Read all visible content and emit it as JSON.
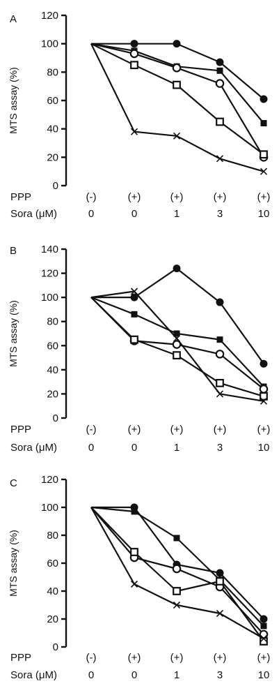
{
  "chart_data": [
    {
      "panel": "A",
      "type": "line",
      "ylabel": "MTS assay (%)",
      "ylim": [
        0,
        120
      ],
      "yticks": [
        0,
        20,
        40,
        60,
        80,
        100,
        120
      ],
      "categories": [
        "0",
        "1",
        "2",
        "3",
        "4"
      ],
      "rows": [
        {
          "name": "PPP",
          "values": [
            "(-)",
            "(+)",
            "(+)",
            "(+)",
            "(+)"
          ]
        },
        {
          "name": "Sora (μM)",
          "values": [
            "0",
            "0",
            "1",
            "3",
            "10"
          ]
        }
      ],
      "series": [
        {
          "marker": "filled-circle",
          "values": [
            100,
            100,
            100,
            87,
            61
          ]
        },
        {
          "marker": "filled-square",
          "values": [
            100,
            95,
            84,
            81,
            44
          ]
        },
        {
          "marker": "open-circle",
          "values": [
            100,
            93,
            83,
            72,
            20
          ]
        },
        {
          "marker": "open-square",
          "values": [
            100,
            85,
            71,
            45,
            22
          ]
        },
        {
          "marker": "cross",
          "values": [
            100,
            38,
            35,
            19,
            10
          ]
        }
      ]
    },
    {
      "panel": "B",
      "type": "line",
      "ylabel": "MTS assay (%)",
      "ylim": [
        0,
        140
      ],
      "yticks": [
        0,
        20,
        40,
        60,
        80,
        100,
        120,
        140
      ],
      "categories": [
        "0",
        "1",
        "2",
        "3",
        "4"
      ],
      "rows": [
        {
          "name": "PPP",
          "values": [
            "(-)",
            "(+)",
            "(+)",
            "(+)",
            "(+)"
          ]
        },
        {
          "name": "Sora (μM)",
          "values": [
            "0",
            "0",
            "1",
            "3",
            "10"
          ]
        }
      ],
      "series": [
        {
          "marker": "filled-circle",
          "values": [
            100,
            100,
            124,
            96,
            45
          ]
        },
        {
          "marker": "filled-square",
          "values": [
            100,
            86,
            70,
            65,
            26
          ]
        },
        {
          "marker": "open-circle",
          "values": [
            100,
            64,
            61,
            53,
            24
          ]
        },
        {
          "marker": "open-square",
          "values": [
            100,
            65,
            52,
            29,
            18
          ]
        },
        {
          "marker": "cross",
          "values": [
            100,
            105,
            66,
            20,
            14
          ]
        }
      ]
    },
    {
      "panel": "C",
      "type": "line",
      "ylabel": "MTS assay (%)",
      "ylim": [
        0,
        120
      ],
      "yticks": [
        0,
        20,
        40,
        60,
        80,
        100,
        120
      ],
      "categories": [
        "0",
        "1",
        "2",
        "3",
        "4"
      ],
      "rows": [
        {
          "name": "PPP",
          "values": [
            "(-)",
            "(+)",
            "(+)",
            "(+)",
            "(+)"
          ]
        },
        {
          "name": "Sora (μM)",
          "values": [
            "0",
            "0",
            "1",
            "3",
            "10"
          ]
        }
      ],
      "series": [
        {
          "marker": "filled-circle",
          "values": [
            100,
            100,
            59,
            53,
            20
          ]
        },
        {
          "marker": "filled-square",
          "values": [
            100,
            97,
            78,
            48,
            15
          ]
        },
        {
          "marker": "open-circle",
          "values": [
            100,
            64,
            56,
            43,
            9
          ]
        },
        {
          "marker": "open-square",
          "values": [
            100,
            68,
            40,
            47,
            4
          ]
        },
        {
          "marker": "cross",
          "values": [
            100,
            45,
            30,
            24,
            6
          ]
        }
      ]
    }
  ]
}
